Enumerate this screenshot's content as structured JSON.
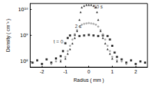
{
  "chart_data": {
    "type": "scatter",
    "x_label": "Radius ( mm )",
    "y_label": "Density ( cm⁻³ )",
    "log": "y",
    "grid": false,
    "tick_labels": true,
    "xlim": [
      -2.5,
      2.5
    ],
    "xticks": [
      -2,
      -1,
      0,
      1,
      2
    ],
    "ylim": [
      60000000,
      17000000000
    ],
    "yticks": [
      {
        "value": 100000000,
        "label": "10⁸"
      },
      {
        "value": 1000000000,
        "label": "10⁹"
      },
      {
        "value": 10000000000,
        "label": "10¹⁰"
      }
    ],
    "series": [
      {
        "color": "#000000",
        "marker": "square",
        "x": [
          -2.4,
          -2.2,
          -2.0,
          -1.8,
          -1.6,
          -1.4,
          -1.2,
          -1.1,
          -1.0,
          -0.9,
          -0.8,
          -0.6,
          -0.4,
          -0.2,
          0,
          0.2,
          0.4,
          0.6,
          0.8,
          0.9,
          1.0,
          1.1,
          1.2,
          1.4,
          1.6,
          1.8,
          2.0,
          2.2,
          2.4
        ],
        "values": [
          90000000,
          110000000,
          80000000,
          120000000,
          90000000,
          130000000,
          160000000,
          250000000,
          500000000,
          800000000,
          1000000000,
          1050000000,
          950000000,
          1000000000,
          1050000000,
          1000000000,
          950000000,
          1000000000,
          950000000,
          700000000,
          400000000,
          220000000,
          150000000,
          120000000,
          90000000,
          110000000,
          80000000,
          100000000,
          90000000
        ]
      },
      {
        "color": "#999999",
        "marker": "circle",
        "x": [
          -1.6,
          -1.4,
          -1.2,
          -1.0,
          -0.9,
          -0.8,
          -0.7,
          -0.6,
          -0.5,
          -0.4,
          -0.3,
          -0.2,
          -0.1,
          0,
          0.1,
          0.2,
          0.3,
          0.4,
          0.5,
          0.6,
          0.7,
          0.8,
          0.9,
          1.0,
          1.2,
          1.4,
          1.6
        ],
        "values": [
          80000000,
          100000000,
          110000000,
          150000000,
          250000000,
          400000000,
          700000000,
          1100000000,
          1600000000,
          2200000000,
          2600000000,
          2800000000,
          2900000000,
          3000000000,
          2900000000,
          2800000000,
          2600000000,
          2200000000,
          1600000000,
          1100000000,
          700000000,
          400000000,
          250000000,
          150000000,
          110000000,
          100000000,
          80000000
        ]
      },
      {
        "color": "#000000",
        "marker": "triangle",
        "x": [
          -1.2,
          -1.0,
          -0.9,
          -0.8,
          -0.7,
          -0.6,
          -0.5,
          -0.4,
          -0.35,
          -0.3,
          -0.2,
          -0.1,
          0,
          0.1,
          0.2,
          0.3,
          0.35,
          0.4,
          0.5,
          0.6,
          0.7,
          0.8,
          0.9,
          1.0,
          1.2
        ],
        "values": [
          100000000,
          130000000,
          200000000,
          300000000,
          500000000,
          800000000,
          1500000000,
          4000000000,
          8000000000,
          12000000000,
          14000000000,
          15000000000,
          15000000000,
          15000000000,
          14000000000,
          12000000000,
          8000000000,
          4000000000,
          1500000000,
          800000000,
          500000000,
          300000000,
          200000000,
          130000000,
          100000000
        ]
      }
    ],
    "annotations": [
      {
        "text": "10 s",
        "x": 0.4,
        "y": 13000000000
      },
      {
        "text": "2 s",
        "x": -0.45,
        "y": 2300000000
      },
      {
        "text": "t = 0",
        "x": -1.3,
        "y": 580000000
      }
    ]
  }
}
